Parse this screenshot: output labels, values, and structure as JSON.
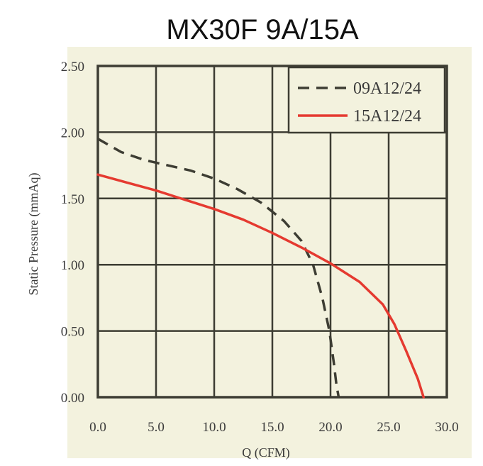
{
  "chart_data": {
    "type": "line",
    "title": "MX30F 9A/15A",
    "xlabel": "Q (CFM)",
    "ylabel": "Static Pressure (mmAq)",
    "xlim": [
      0,
      30
    ],
    "ylim": [
      0,
      2.5
    ],
    "x_ticks": [
      "0.0",
      "5.0",
      "10.0",
      "15.0",
      "20.0",
      "25.0",
      "30.0"
    ],
    "y_ticks": [
      "0.00",
      "0.50",
      "1.00",
      "1.50",
      "2.00",
      "2.50"
    ],
    "grid": true,
    "legend_position": "top-right",
    "series": [
      {
        "name": "09A12/24",
        "style": "dashed",
        "color": "#3d3d33",
        "points": [
          [
            0,
            1.95
          ],
          [
            2,
            1.85
          ],
          [
            4,
            1.79
          ],
          [
            6,
            1.75
          ],
          [
            8,
            1.71
          ],
          [
            10,
            1.65
          ],
          [
            12,
            1.57
          ],
          [
            14,
            1.47
          ],
          [
            16,
            1.33
          ],
          [
            17.5,
            1.18
          ],
          [
            18.5,
            1.0
          ],
          [
            19.3,
            0.75
          ],
          [
            19.9,
            0.5
          ],
          [
            20.3,
            0.25
          ],
          [
            20.5,
            0.1
          ],
          [
            20.7,
            0.0
          ]
        ]
      },
      {
        "name": "15A12/24",
        "style": "solid",
        "color": "#e53a30",
        "points": [
          [
            0,
            1.68
          ],
          [
            2.5,
            1.62
          ],
          [
            5,
            1.56
          ],
          [
            7.5,
            1.49
          ],
          [
            10,
            1.42
          ],
          [
            12.5,
            1.34
          ],
          [
            15,
            1.24
          ],
          [
            17.5,
            1.13
          ],
          [
            20,
            1.01
          ],
          [
            22.5,
            0.87
          ],
          [
            24.5,
            0.7
          ],
          [
            25.5,
            0.55
          ],
          [
            26.5,
            0.35
          ],
          [
            27.5,
            0.14
          ],
          [
            28,
            0.0
          ]
        ]
      }
    ]
  }
}
